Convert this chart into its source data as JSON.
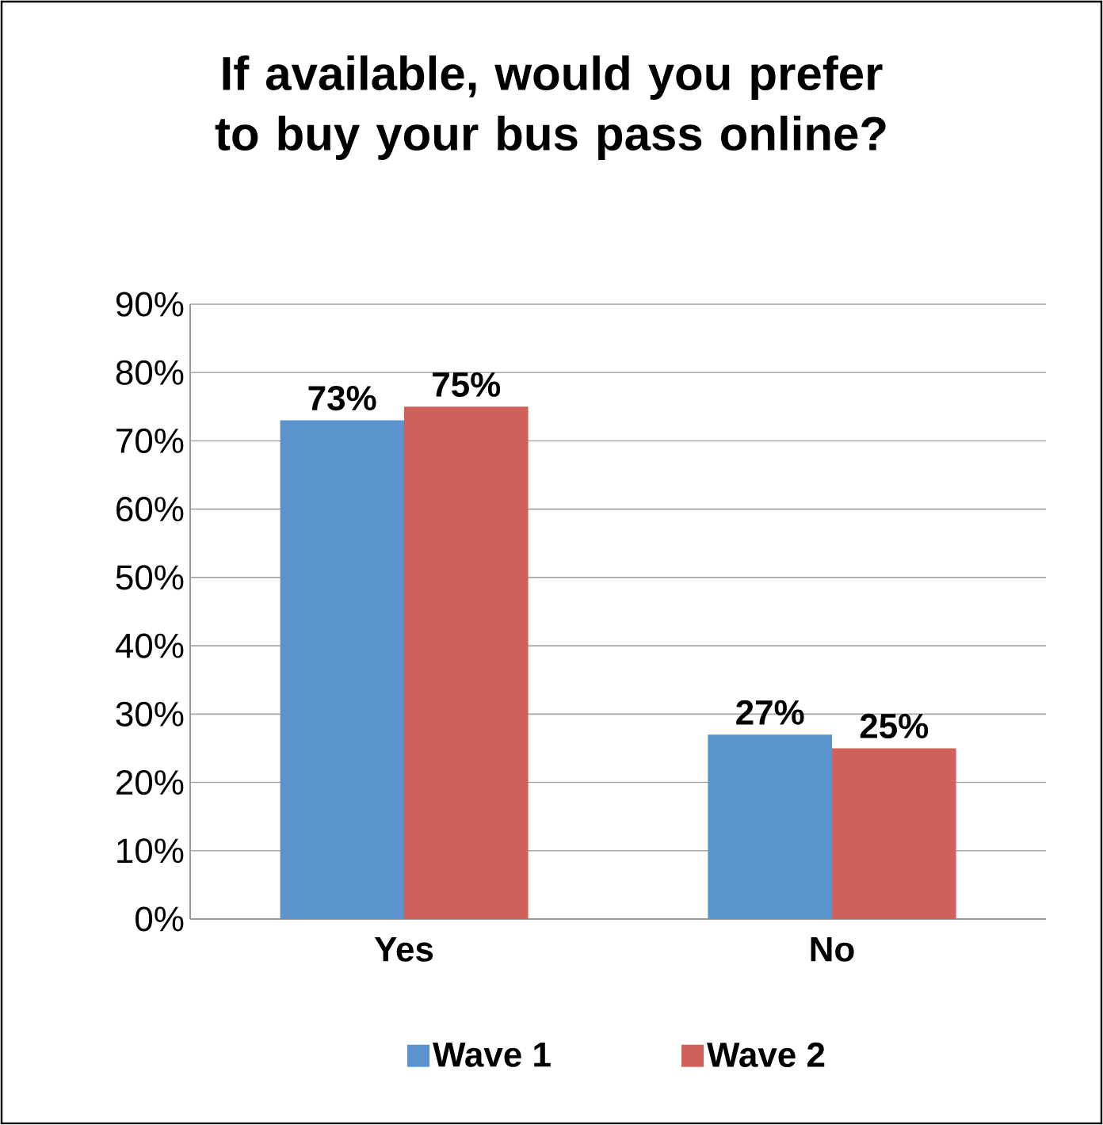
{
  "chart_data": {
    "type": "bar",
    "title": "If available, would you prefer to buy your bus pass online?",
    "categories": [
      "Yes",
      "No"
    ],
    "series": [
      {
        "name": "Wave 1",
        "color": "#5b93cc",
        "values": [
          73,
          27
        ],
        "value_labels": [
          "73%",
          "27%"
        ]
      },
      {
        "name": "Wave 2",
        "color": "#d0605a",
        "values": [
          75,
          25
        ],
        "value_labels": [
          "75%",
          "25%"
        ]
      }
    ],
    "ylim": [
      0,
      90
    ],
    "yticks": [
      {
        "value": 0,
        "label": "0%"
      },
      {
        "value": 10,
        "label": "10%"
      },
      {
        "value": 20,
        "label": "20%"
      },
      {
        "value": 30,
        "label": "30%"
      },
      {
        "value": 40,
        "label": "40%"
      },
      {
        "value": 50,
        "label": "50%"
      },
      {
        "value": 60,
        "label": "60%"
      },
      {
        "value": 70,
        "label": "70%"
      },
      {
        "value": 80,
        "label": "80%"
      },
      {
        "value": 90,
        "label": "90%"
      }
    ],
    "grid": "y",
    "legend": "bottom"
  }
}
